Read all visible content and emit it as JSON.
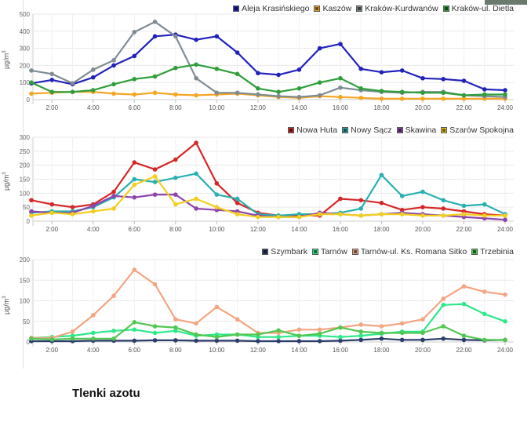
{
  "caption": "Tlenki azotu",
  "y_unit": "µg/m",
  "y_unit_exp": "3",
  "chart_data": [
    {
      "type": "line",
      "categories": [
        "1:00",
        "2:00",
        "3:00",
        "4:00",
        "5:00",
        "6:00",
        "7:00",
        "8:00",
        "9:00",
        "10:00",
        "11:00",
        "12:00",
        "13:00",
        "14:00",
        "15:00",
        "16:00",
        "17:00",
        "18:00",
        "19:00",
        "20:00",
        "21:00",
        "22:00",
        "23:00",
        "24:00"
      ],
      "tick_labels": [
        "2:00",
        "4:00",
        "6:00",
        "8:00",
        "10:00",
        "12:00",
        "14:00",
        "16:00",
        "18:00",
        "20:00",
        "22:00",
        "24:00"
      ],
      "ylim": [
        0,
        500
      ],
      "yticks": [
        0,
        100,
        200,
        300,
        400,
        500
      ],
      "grid": true,
      "legend": "top-right",
      "series": [
        {
          "name": "Aleja Krasińskiego",
          "color": "#2222bb",
          "values": [
            95,
            115,
            90,
            130,
            200,
            255,
            370,
            380,
            350,
            370,
            275,
            155,
            145,
            175,
            300,
            325,
            180,
            160,
            170,
            125,
            120,
            110,
            60,
            55
          ]
        },
        {
          "name": "Kaszów",
          "color": "#f5a623",
          "values": [
            35,
            40,
            45,
            45,
            35,
            30,
            40,
            30,
            25,
            30,
            35,
            25,
            15,
            10,
            20,
            15,
            10,
            5,
            5,
            5,
            5,
            5,
            5,
            5
          ]
        },
        {
          "name": "Kraków-Kurdwanów",
          "color": "#7f8c93",
          "values": [
            170,
            150,
            95,
            175,
            230,
            395,
            455,
            370,
            125,
            40,
            40,
            30,
            20,
            15,
            25,
            70,
            55,
            45,
            40,
            45,
            45,
            25,
            20,
            15
          ]
        },
        {
          "name": "Kraków-ul. Dietla",
          "color": "#2e9e3a",
          "values": [
            100,
            45,
            45,
            55,
            90,
            120,
            135,
            185,
            205,
            180,
            150,
            65,
            45,
            65,
            100,
            125,
            65,
            50,
            45,
            40,
            40,
            25,
            30,
            30
          ]
        }
      ]
    },
    {
      "type": "line",
      "categories": [
        "1:00",
        "2:00",
        "3:00",
        "4:00",
        "5:00",
        "6:00",
        "7:00",
        "8:00",
        "9:00",
        "10:00",
        "11:00",
        "12:00",
        "13:00",
        "14:00",
        "15:00",
        "16:00",
        "17:00",
        "18:00",
        "19:00",
        "20:00",
        "21:00",
        "22:00",
        "23:00",
        "24:00"
      ],
      "tick_labels": [
        "2:00",
        "4:00",
        "6:00",
        "8:00",
        "10:00",
        "12:00",
        "14:00",
        "16:00",
        "18:00",
        "20:00",
        "22:00",
        "24:00"
      ],
      "ylim": [
        0,
        300
      ],
      "yticks": [
        0,
        50,
        100,
        150,
        200,
        250,
        300
      ],
      "grid": true,
      "legend": "top-right",
      "series": [
        {
          "name": "Nowa Huta",
          "color": "#d62728",
          "values": [
            75,
            60,
            50,
            60,
            105,
            210,
            185,
            220,
            280,
            135,
            65,
            30,
            20,
            20,
            20,
            80,
            75,
            65,
            40,
            50,
            45,
            35,
            25,
            20
          ]
        },
        {
          "name": "Nowy Sącz",
          "color": "#2ab0b0",
          "values": [
            30,
            35,
            35,
            50,
            85,
            150,
            140,
            155,
            170,
            95,
            80,
            25,
            20,
            25,
            25,
            30,
            45,
            165,
            90,
            105,
            75,
            55,
            60,
            25
          ]
        },
        {
          "name": "Skawina",
          "color": "#8e44ad",
          "values": [
            35,
            30,
            30,
            55,
            90,
            85,
            95,
            95,
            45,
            40,
            35,
            20,
            15,
            15,
            30,
            25,
            20,
            25,
            30,
            25,
            20,
            15,
            10,
            5
          ]
        },
        {
          "name": "Szarów Spokojna",
          "color": "#f2cf1f",
          "values": [
            20,
            30,
            25,
            35,
            45,
            130,
            160,
            60,
            80,
            50,
            25,
            15,
            15,
            15,
            25,
            25,
            20,
            25,
            25,
            20,
            20,
            25,
            20,
            20
          ]
        }
      ]
    },
    {
      "type": "line",
      "categories": [
        "1:00",
        "2:00",
        "3:00",
        "4:00",
        "5:00",
        "6:00",
        "7:00",
        "8:00",
        "9:00",
        "10:00",
        "11:00",
        "12:00",
        "13:00",
        "14:00",
        "15:00",
        "16:00",
        "17:00",
        "18:00",
        "19:00",
        "20:00",
        "21:00",
        "22:00",
        "23:00",
        "24:00"
      ],
      "tick_labels": [
        "2:00",
        "4:00",
        "6:00",
        "8:00",
        "10:00",
        "12:00",
        "14:00",
        "16:00",
        "18:00",
        "20:00",
        "22:00",
        "24:00"
      ],
      "ylim": [
        0,
        200
      ],
      "yticks": [
        0,
        50,
        100,
        150,
        200
      ],
      "grid": true,
      "legend": "top-right",
      "series": [
        {
          "name": "Szymbark",
          "color": "#2c3e6b",
          "values": [
            2,
            2,
            2,
            3,
            3,
            3,
            4,
            4,
            3,
            3,
            3,
            2,
            2,
            2,
            2,
            3,
            5,
            8,
            5,
            5,
            8,
            5,
            4,
            5
          ]
        },
        {
          "name": "Tarnów",
          "color": "#2ee88a",
          "values": [
            10,
            12,
            15,
            22,
            27,
            30,
            22,
            27,
            15,
            18,
            18,
            12,
            12,
            15,
            15,
            12,
            15,
            20,
            25,
            25,
            90,
            92,
            68,
            50
          ]
        },
        {
          "name": "Tarnów-ul. Ks. Romana Sitko",
          "color": "#f4a582",
          "values": [
            10,
            10,
            25,
            65,
            112,
            175,
            140,
            55,
            45,
            85,
            55,
            22,
            22,
            30,
            30,
            35,
            42,
            38,
            45,
            55,
            105,
            135,
            122,
            115
          ]
        },
        {
          "name": "Trzebinia",
          "color": "#52c752",
          "values": [
            8,
            6,
            8,
            8,
            8,
            48,
            38,
            35,
            18,
            12,
            18,
            18,
            28,
            15,
            20,
            35,
            25,
            22,
            22,
            22,
            38,
            15,
            5,
            5
          ]
        }
      ]
    }
  ]
}
